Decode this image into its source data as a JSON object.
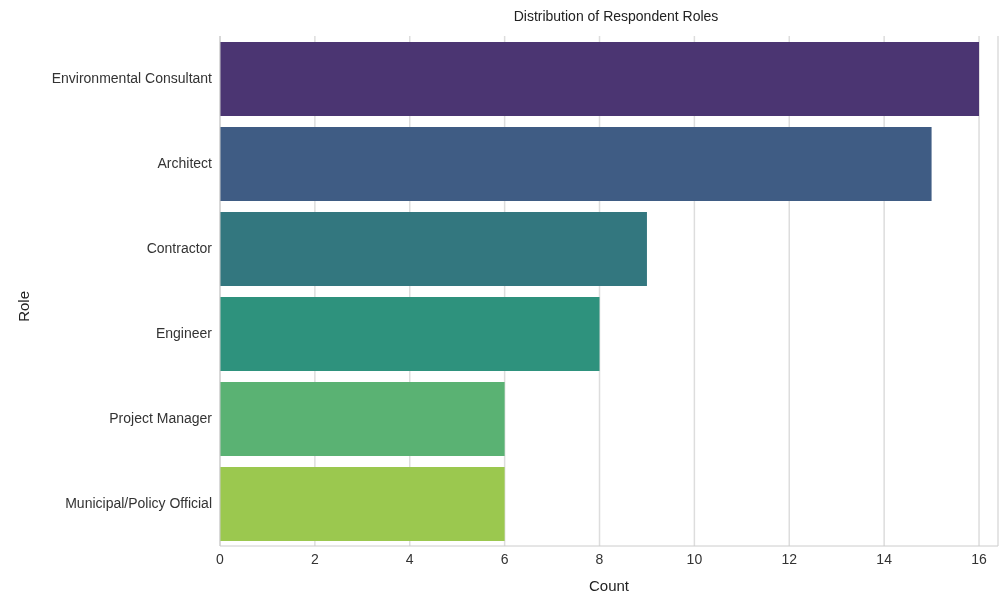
{
  "chart_data": {
    "type": "bar",
    "orientation": "horizontal",
    "title": "Distribution of Respondent Roles",
    "xlabel": "Count",
    "ylabel": "Role",
    "categories": [
      "Environmental Consultant",
      "Architect",
      "Contractor",
      "Engineer",
      "Project Manager",
      "Municipal/Policy Official"
    ],
    "values": [
      16,
      15,
      9,
      8,
      6,
      6
    ],
    "colors": [
      "#4b3572",
      "#3f5c84",
      "#33777f",
      "#2e927d",
      "#5ab273",
      "#9bc84f"
    ],
    "xlim": [
      0,
      16.4
    ],
    "xticks": [
      0,
      2,
      4,
      6,
      8,
      10,
      12,
      14,
      16
    ],
    "grid": "x",
    "legend": false
  }
}
